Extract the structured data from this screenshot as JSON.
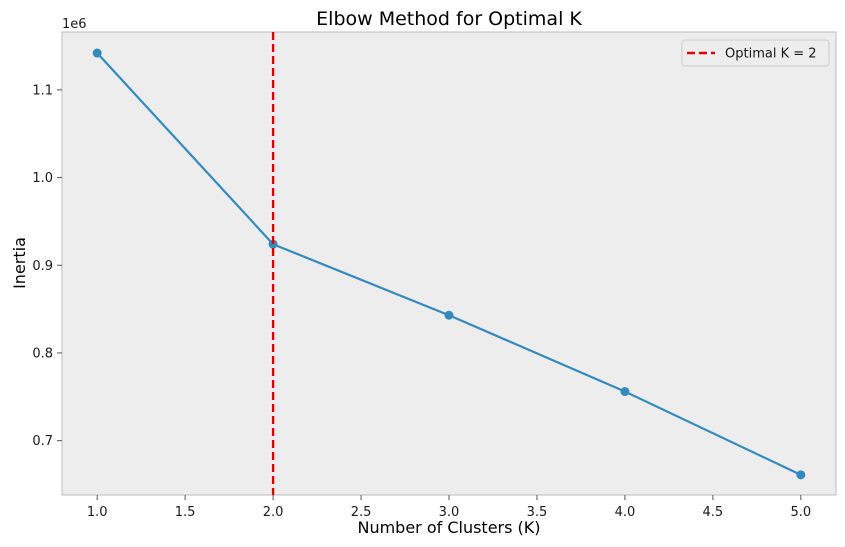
{
  "chart_data": {
    "type": "line",
    "title": "Elbow Method for Optimal K",
    "xlabel": "Number of Clusters (K)",
    "ylabel": "Inertia",
    "y_offset_label": "1e6",
    "xlim": [
      0.8,
      5.2
    ],
    "ylim": [
      0.638,
      1.166
    ],
    "x_ticks": [
      1.0,
      1.5,
      2.0,
      2.5,
      3.0,
      3.5,
      4.0,
      4.5,
      5.0
    ],
    "x_tick_labels": [
      "1.0",
      "1.5",
      "2.0",
      "2.5",
      "3.0",
      "3.5",
      "4.0",
      "4.5",
      "5.0"
    ],
    "y_ticks": [
      0.7,
      0.8,
      0.9,
      1.0,
      1.1
    ],
    "y_tick_labels": [
      "0.7",
      "0.8",
      "0.9",
      "1.0",
      "1.1"
    ],
    "grid": false,
    "legend_placement": "top-right",
    "series": [
      {
        "x": [
          1,
          2,
          3,
          4,
          5
        ],
        "y": [
          1.142,
          0.924,
          0.843,
          0.756,
          0.661
        ],
        "color": "#348ABD",
        "marker": "circle"
      }
    ],
    "reference_lines": [
      {
        "orientation": "vertical",
        "x": 2,
        "label": "Optimal K = 2",
        "color": "#E00000",
        "style": "dashed"
      }
    ],
    "colors": {
      "plot_background": "#EDEDED",
      "frame": "#BCBCBC",
      "series": "#348ABD",
      "reference_line": "#E00000"
    }
  }
}
